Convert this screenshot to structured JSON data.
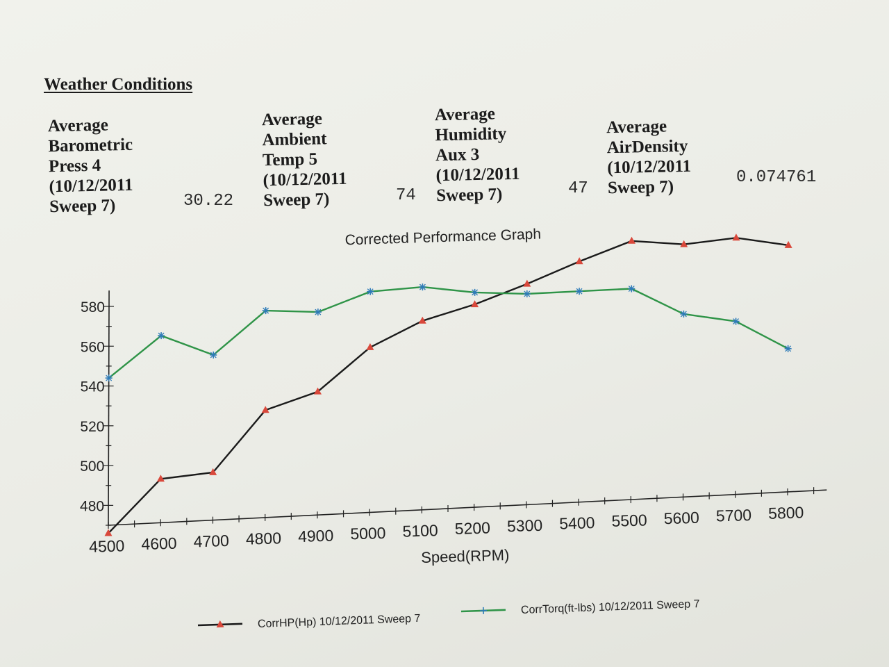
{
  "weather": {
    "heading": "Weather Conditions",
    "items": [
      {
        "label": [
          "Average",
          "Barometric",
          "Press 4",
          "(10/12/2011",
          "Sweep 7)"
        ],
        "value": "30.22"
      },
      {
        "label": [
          "Average",
          "Ambient",
          "Temp 5",
          "(10/12/2011",
          "Sweep 7)"
        ],
        "value": "74"
      },
      {
        "label": [
          "Average",
          "Humidity",
          "Aux 3",
          "(10/12/2011",
          "Sweep 7)"
        ],
        "value": "47"
      },
      {
        "label": [
          "Average",
          "AirDensity",
          "(10/12/2011",
          "Sweep 7)"
        ],
        "value": "0.074761"
      }
    ]
  },
  "chart_data": {
    "type": "line",
    "title": "Corrected Performance Graph",
    "xlabel": "Speed(RPM)",
    "ylabel": "",
    "x": [
      4500,
      4600,
      4700,
      4800,
      4900,
      5000,
      5100,
      5200,
      5300,
      5400,
      5500,
      5600,
      5700,
      5800
    ],
    "x_ticks": [
      "4500",
      "4600",
      "4700",
      "4800",
      "4900",
      "5000",
      "5100",
      "5200",
      "5300",
      "5400",
      "5500",
      "5600",
      "5700",
      "5800"
    ],
    "y_ticks": [
      "480",
      "500",
      "520",
      "540",
      "560",
      "580"
    ],
    "xlim": [
      4500,
      5800
    ],
    "ylim": [
      470,
      590
    ],
    "grid": false,
    "legend": "bottom",
    "series": [
      {
        "name": "CorrHP(Hp) 10/12/2011 Sweep 7",
        "color": "#1a1a1a",
        "marker": "triangle",
        "marker_color": "#d9483b",
        "x": [
          4500,
          4600,
          4700,
          4800,
          4900,
          5000,
          5100,
          5200,
          5300,
          5400,
          5500,
          5600,
          5700,
          5800
        ],
        "values": [
          466,
          492,
          494,
          524,
          532,
          553,
          565,
          572,
          581,
          591,
          600,
          597,
          599,
          594
        ]
      },
      {
        "name": "CorrTorq(ft-lbs) 10/12/2011 Sweep 7",
        "color": "#2f9448",
        "marker": "star",
        "marker_color": "#2e7bb8",
        "x": [
          4500,
          4600,
          4700,
          4800,
          4900,
          5000,
          5100,
          5200,
          5300,
          5400,
          5500,
          5600,
          5700,
          5800
        ],
        "values": [
          544,
          564,
          553,
          574,
          572,
          581,
          582,
          578,
          576,
          576,
          576,
          562,
          557,
          542
        ]
      }
    ]
  }
}
